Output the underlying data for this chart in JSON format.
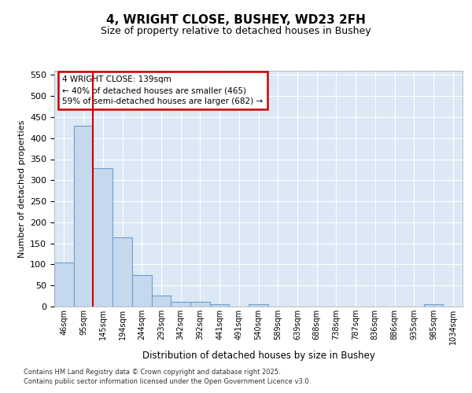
{
  "title": "4, WRIGHT CLOSE, BUSHEY, WD23 2FH",
  "subtitle": "Size of property relative to detached houses in Bushey",
  "xlabel": "Distribution of detached houses by size in Bushey",
  "ylabel": "Number of detached properties",
  "bar_color": "#c5d8ed",
  "bar_edge_color": "#6da0cc",
  "bg_color": "#dce8f5",
  "grid_color": "white",
  "categories": [
    "46sqm",
    "95sqm",
    "145sqm",
    "194sqm",
    "244sqm",
    "293sqm",
    "342sqm",
    "392sqm",
    "441sqm",
    "491sqm",
    "540sqm",
    "589sqm",
    "639sqm",
    "688sqm",
    "738sqm",
    "787sqm",
    "836sqm",
    "886sqm",
    "935sqm",
    "985sqm",
    "1034sqm"
  ],
  "values": [
    105,
    430,
    328,
    165,
    75,
    27,
    11,
    11,
    5,
    0,
    5,
    0,
    0,
    0,
    0,
    0,
    0,
    0,
    0,
    5,
    0
  ],
  "ylim": [
    0,
    560
  ],
  "yticks": [
    0,
    50,
    100,
    150,
    200,
    250,
    300,
    350,
    400,
    450,
    500,
    550
  ],
  "annotation_line1": "4 WRIGHT CLOSE: 139sqm",
  "annotation_line2": "← 40% of detached houses are smaller (465)",
  "annotation_line3": "59% of semi-detached houses are larger (682) →",
  "vline_bin": 2,
  "vline_color": "#cc0000",
  "footer_line1": "Contains HM Land Registry data © Crown copyright and database right 2025.",
  "footer_line2": "Contains public sector information licensed under the Open Government Licence v3.0."
}
